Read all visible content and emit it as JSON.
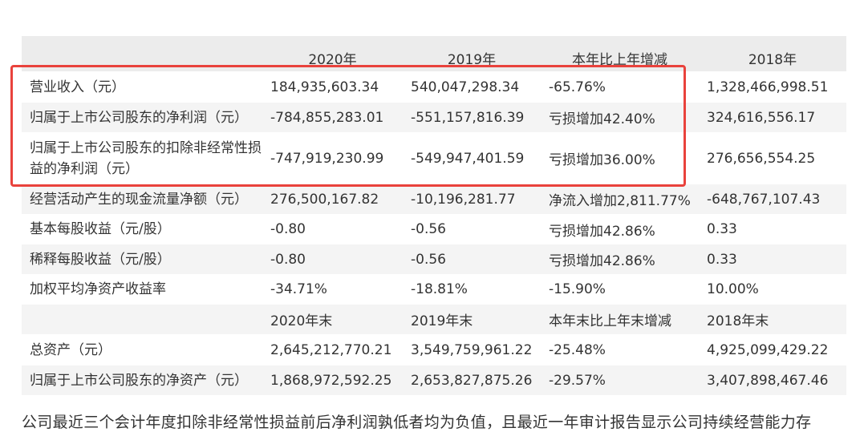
{
  "table": {
    "header": [
      "",
      "2020年",
      "2019年",
      "本年比上年增减",
      "2018年"
    ],
    "rows": [
      {
        "label": "营业收入（元）",
        "v2020": "184,935,603.34",
        "v2019": "540,047,298.34",
        "change": "-65.76%",
        "v2018": "1,328,466,998.51"
      },
      {
        "label": "归属于上市公司股东的净利润（元）",
        "v2020": "-784,855,283.01",
        "v2019": "-551,157,816.39",
        "change": "亏损增加42.40%",
        "v2018": "324,616,556.17"
      },
      {
        "label": "归属于上市公司股东的扣除非经常性损益的净利润（元）",
        "v2020": "-747,919,230.99",
        "v2019": "-549,947,401.59",
        "change": "亏损增加36.00%",
        "v2018": "276,656,554.25"
      },
      {
        "label": "经营活动产生的现金流量净额（元）",
        "v2020": "276,500,167.82",
        "v2019": "-10,196,281.77",
        "change": "净流入增加2,811.77%",
        "v2018": "-648,767,107.43"
      },
      {
        "label": "基本每股收益（元/股）",
        "v2020": "-0.80",
        "v2019": "-0.56",
        "change": "亏损增加42.86%",
        "v2018": "0.33"
      },
      {
        "label": "稀释每股收益（元/股）",
        "v2020": "-0.80",
        "v2019": "-0.56",
        "change": "亏损增加42.86%",
        "v2018": "0.33"
      },
      {
        "label": "加权平均净资产收益率",
        "v2020": "-34.71%",
        "v2019": "-18.81%",
        "change": "-15.90%",
        "v2018": "10.00%"
      }
    ],
    "subheader": [
      "",
      "2020年末",
      "2019年末",
      "本年末比上年末增减",
      "2018年末"
    ],
    "asset_rows": [
      {
        "label": "总资产（元）",
        "v2020": "2,645,212,770.21",
        "v2019": "3,549,759,961.22",
        "change": "-25.48%",
        "v2018": "4,925,099,429.22"
      },
      {
        "label": "归属于上市公司股东的净资产（元）",
        "v2020": "1,868,972,592.25",
        "v2019": "2,653,827,875.26",
        "change": "-29.57%",
        "v2018": "3,407,898,467.46"
      }
    ]
  },
  "highlight_color": "#e9423c",
  "footer_text": "公司最近三个会计年度扣除非经常性损益前后净利润孰低者均为负值，且最近一年审计报告显示公司持续经营能力存"
}
